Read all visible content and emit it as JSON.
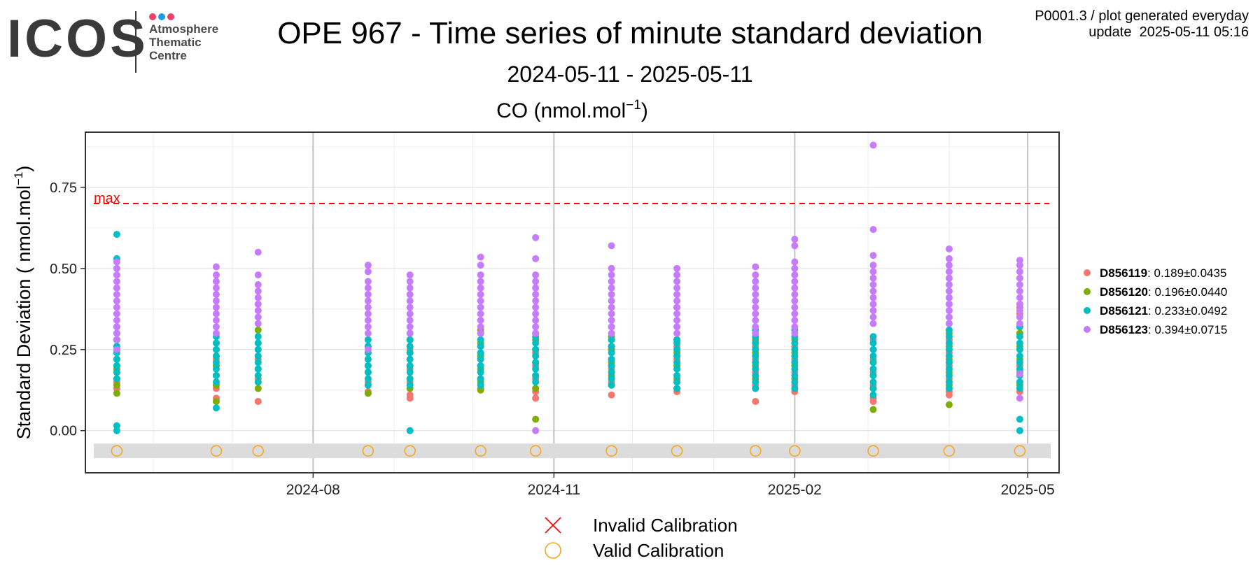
{
  "logo": {
    "word": "ICOS",
    "lines": [
      "Atmosphere",
      "Thematic",
      "Centre"
    ],
    "dot_colors": [
      "#e8426b",
      "#1c9be6",
      "#e8426b"
    ]
  },
  "header": {
    "title": "OPE 967 - Time series of minute standard deviation",
    "subtitle": "2024-05-11 - 2025-05-11",
    "info_line1": "P0001.3 / plot generated everyday",
    "info_line2": "update  2025-05-11 05:16"
  },
  "chart_data": {
    "type": "scatter",
    "title": "CO (nmol.mol",
    "title_sup": "−1",
    "title_close": ")",
    "ylabel": "Standard Deviation ( nmol.mol",
    "ylabel_sup": "−1",
    "ylabel_close": ")",
    "ylim": [
      -0.13,
      0.92
    ],
    "yticks": [
      0.0,
      0.25,
      0.5,
      0.75
    ],
    "ytick_labels": [
      "0.00",
      "0.25",
      "0.50",
      "0.75"
    ],
    "xlim": [
      "2024-05-06",
      "2025-05-13"
    ],
    "xticks": [
      "2024-08-01",
      "2024-11-01",
      "2025-02-01",
      "2025-05-01"
    ],
    "xtick_labels": [
      "2024-08",
      "2024-11",
      "2025-02",
      "2025-05"
    ],
    "grid": true,
    "legend_position": "right",
    "max_line": {
      "value": 0.7,
      "label": "max",
      "color": "#ff0000"
    },
    "calibration_band": {
      "y_range": [
        -0.085,
        -0.04
      ],
      "color": "#dcdcdc"
    },
    "calibration_dates": [
      "2024-05-18",
      "2024-06-25",
      "2024-07-11",
      "2024-08-22",
      "2024-09-07",
      "2024-10-04",
      "2024-10-25",
      "2024-11-23",
      "2024-12-18",
      "2025-01-17",
      "2025-02-01",
      "2025-03-03",
      "2025-04-01",
      "2025-04-28"
    ],
    "calibration_color": "#f5a623",
    "calibration_legend": [
      {
        "label": "Invalid Calibration",
        "marker": "cross",
        "color": "#ff0000"
      },
      {
        "label": "Valid Calibration",
        "marker": "circle",
        "color": "#f5a623"
      }
    ],
    "series": [
      {
        "name": "D856119",
        "stats": ": 0.189±0.0435",
        "color": "#f8766d",
        "points": [
          {
            "x": "2024-05-18",
            "y": [
              0.13,
              0.15,
              0.18,
              0.2,
              0.22,
              0.25,
              0.28
            ]
          },
          {
            "x": "2024-06-25",
            "y": [
              0.1,
              0.13,
              0.17,
              0.2,
              0.22,
              0.25
            ]
          },
          {
            "x": "2024-07-11",
            "y": [
              0.09,
              0.16,
              0.19,
              0.22,
              0.25
            ]
          },
          {
            "x": "2024-08-22",
            "y": [
              0.12,
              0.15,
              0.18,
              0.2,
              0.24
            ]
          },
          {
            "x": "2024-09-07",
            "y": [
              0.1,
              0.11,
              0.15,
              0.19,
              0.22,
              0.25
            ]
          },
          {
            "x": "2024-10-04",
            "y": [
              0.13,
              0.16,
              0.2,
              0.23,
              0.26,
              0.3
            ]
          },
          {
            "x": "2024-10-25",
            "y": [
              0.1,
              0.12,
              0.16,
              0.2,
              0.24,
              0.3
            ]
          },
          {
            "x": "2024-11-23",
            "y": [
              0.11,
              0.15,
              0.19,
              0.22,
              0.26,
              0.32
            ]
          },
          {
            "x": "2024-12-18",
            "y": [
              0.12,
              0.15,
              0.19,
              0.22,
              0.26,
              0.38
            ]
          },
          {
            "x": "2025-01-17",
            "y": [
              0.09,
              0.14,
              0.18,
              0.22,
              0.26,
              0.3
            ]
          },
          {
            "x": "2025-02-01",
            "y": [
              0.12,
              0.14,
              0.18,
              0.22,
              0.26
            ]
          },
          {
            "x": "2025-03-03",
            "y": [
              0.09,
              0.1,
              0.14,
              0.18,
              0.22,
              0.28
            ]
          },
          {
            "x": "2025-04-01",
            "y": [
              0.11,
              0.12,
              0.16,
              0.2,
              0.24,
              0.28
            ]
          },
          {
            "x": "2025-04-28",
            "y": [
              0.12,
              0.15,
              0.2,
              0.25,
              0.3,
              0.36,
              0.38
            ]
          }
        ]
      },
      {
        "name": "D856120",
        "stats": ": 0.196±0.0440",
        "color": "#7cae00",
        "points": [
          {
            "x": "2024-05-18",
            "y": [
              0.115,
              0.14,
              0.16,
              0.19,
              0.22,
              0.25,
              0.28
            ]
          },
          {
            "x": "2024-06-25",
            "y": [
              0.09,
              0.14,
              0.17,
              0.2,
              0.23,
              0.27
            ]
          },
          {
            "x": "2024-07-11",
            "y": [
              0.13,
              0.15,
              0.19,
              0.23,
              0.27,
              0.31
            ]
          },
          {
            "x": "2024-08-22",
            "y": [
              0.115,
              0.14,
              0.18,
              0.22,
              0.26
            ]
          },
          {
            "x": "2024-09-07",
            "y": [
              0.13,
              0.16,
              0.2,
              0.24,
              0.28
            ]
          },
          {
            "x": "2024-10-04",
            "y": [
              0.125,
              0.15,
              0.19,
              0.23,
              0.27,
              0.31
            ]
          },
          {
            "x": "2024-10-25",
            "y": [
              0.035,
              0.13,
              0.17,
              0.21,
              0.25,
              0.28
            ]
          },
          {
            "x": "2024-11-23",
            "y": [
              0.14,
              0.17,
              0.21,
              0.25,
              0.29
            ]
          },
          {
            "x": "2024-12-18",
            "y": [
              0.13,
              0.16,
              0.2,
              0.24,
              0.28
            ]
          },
          {
            "x": "2025-01-17",
            "y": [
              0.13,
              0.16,
              0.2,
              0.24,
              0.28
            ]
          },
          {
            "x": "2025-02-01",
            "y": [
              0.13,
              0.16,
              0.2,
              0.24,
              0.28
            ]
          },
          {
            "x": "2025-03-03",
            "y": [
              0.065,
              0.13,
              0.17,
              0.21,
              0.25
            ]
          },
          {
            "x": "2025-04-01",
            "y": [
              0.08,
              0.14,
              0.18,
              0.22,
              0.26,
              0.3
            ]
          },
          {
            "x": "2025-04-28",
            "y": [
              0.14,
              0.18,
              0.22,
              0.26,
              0.3,
              0.32
            ]
          }
        ]
      },
      {
        "name": "D856121",
        "stats": ": 0.233±0.0492",
        "color": "#00bfc4",
        "points": [
          {
            "x": "2024-05-18",
            "y": [
              0.0,
              0.015,
              0.16,
              0.18,
              0.2,
              0.22,
              0.24,
              0.26,
              0.28,
              0.3,
              0.32,
              0.53,
              0.605
            ]
          },
          {
            "x": "2024-06-25",
            "y": [
              0.07,
              0.15,
              0.17,
              0.19,
              0.21,
              0.23,
              0.25,
              0.27,
              0.29
            ]
          },
          {
            "x": "2024-07-11",
            "y": [
              0.15,
              0.17,
              0.19,
              0.21,
              0.23,
              0.25,
              0.27,
              0.29
            ]
          },
          {
            "x": "2024-08-22",
            "y": [
              0.14,
              0.16,
              0.18,
              0.2,
              0.22,
              0.24,
              0.26,
              0.28
            ]
          },
          {
            "x": "2024-09-07",
            "y": [
              0.0,
              0.14,
              0.16,
              0.18,
              0.2,
              0.22,
              0.24,
              0.26,
              0.28,
              0.3
            ]
          },
          {
            "x": "2024-10-04",
            "y": [
              0.14,
              0.16,
              0.18,
              0.2,
              0.22,
              0.24,
              0.26,
              0.28,
              0.3,
              0.3
            ]
          },
          {
            "x": "2024-10-25",
            "y": [
              0.15,
              0.17,
              0.19,
              0.21,
              0.23,
              0.25,
              0.27,
              0.29,
              0.3
            ]
          },
          {
            "x": "2024-11-23",
            "y": [
              0.14,
              0.16,
              0.18,
              0.2,
              0.22,
              0.24,
              0.26,
              0.28
            ]
          },
          {
            "x": "2024-12-18",
            "y": [
              0.13,
              0.15,
              0.17,
              0.19,
              0.21,
              0.23,
              0.25,
              0.27,
              0.28
            ]
          },
          {
            "x": "2025-01-17",
            "y": [
              0.13,
              0.15,
              0.17,
              0.19,
              0.21,
              0.23,
              0.25,
              0.27,
              0.29,
              0.31
            ]
          },
          {
            "x": "2025-02-01",
            "y": [
              0.13,
              0.15,
              0.17,
              0.19,
              0.21,
              0.23,
              0.25,
              0.27,
              0.29,
              0.31
            ]
          },
          {
            "x": "2025-03-03",
            "y": [
              0.11,
              0.13,
              0.15,
              0.17,
              0.19,
              0.21,
              0.23,
              0.25,
              0.27,
              0.29
            ]
          },
          {
            "x": "2025-04-01",
            "y": [
              0.13,
              0.15,
              0.17,
              0.19,
              0.21,
              0.23,
              0.25,
              0.27,
              0.29,
              0.31,
              0.33
            ]
          },
          {
            "x": "2025-04-28",
            "y": [
              0.0,
              0.035,
              0.13,
              0.15,
              0.17,
              0.19,
              0.21,
              0.23,
              0.25,
              0.27,
              0.29,
              0.32
            ]
          }
        ]
      },
      {
        "name": "D856123",
        "stats": ": 0.394±0.0715",
        "color": "#c77cff",
        "points": [
          {
            "x": "2024-05-18",
            "y": [
              0.25,
              0.28,
              0.3,
              0.32,
              0.34,
              0.36,
              0.38,
              0.4,
              0.42,
              0.44,
              0.46,
              0.48,
              0.5,
              0.52
            ]
          },
          {
            "x": "2024-06-25",
            "y": [
              0.3,
              0.32,
              0.34,
              0.36,
              0.38,
              0.4,
              0.42,
              0.44,
              0.46,
              0.48,
              0.505
            ]
          },
          {
            "x": "2024-07-11",
            "y": [
              0.33,
              0.35,
              0.37,
              0.39,
              0.41,
              0.43,
              0.45,
              0.48,
              0.55
            ]
          },
          {
            "x": "2024-08-22",
            "y": [
              0.25,
              0.3,
              0.32,
              0.34,
              0.36,
              0.38,
              0.4,
              0.42,
              0.44,
              0.46,
              0.49,
              0.51
            ]
          },
          {
            "x": "2024-09-07",
            "y": [
              0.3,
              0.32,
              0.34,
              0.36,
              0.38,
              0.4,
              0.42,
              0.44,
              0.46,
              0.48
            ]
          },
          {
            "x": "2024-10-04",
            "y": [
              0.3,
              0.32,
              0.34,
              0.36,
              0.38,
              0.4,
              0.42,
              0.44,
              0.46,
              0.48,
              0.51,
              0.535
            ]
          },
          {
            "x": "2024-10-25",
            "y": [
              0.0,
              0.3,
              0.32,
              0.34,
              0.36,
              0.38,
              0.4,
              0.42,
              0.44,
              0.46,
              0.48,
              0.53,
              0.595
            ]
          },
          {
            "x": "2024-11-23",
            "y": [
              0.3,
              0.32,
              0.34,
              0.36,
              0.38,
              0.4,
              0.42,
              0.44,
              0.46,
              0.48,
              0.5,
              0.57
            ]
          },
          {
            "x": "2024-12-18",
            "y": [
              0.3,
              0.32,
              0.34,
              0.36,
              0.38,
              0.4,
              0.42,
              0.44,
              0.46,
              0.48,
              0.5
            ]
          },
          {
            "x": "2025-01-17",
            "y": [
              0.3,
              0.32,
              0.34,
              0.36,
              0.38,
              0.4,
              0.42,
              0.44,
              0.46,
              0.48,
              0.505
            ]
          },
          {
            "x": "2025-02-01",
            "y": [
              0.3,
              0.32,
              0.34,
              0.36,
              0.38,
              0.4,
              0.42,
              0.44,
              0.46,
              0.48,
              0.5,
              0.52,
              0.57,
              0.59
            ]
          },
          {
            "x": "2025-03-03",
            "y": [
              0.33,
              0.35,
              0.37,
              0.39,
              0.41,
              0.43,
              0.45,
              0.47,
              0.49,
              0.51,
              0.54,
              0.62,
              0.88
            ]
          },
          {
            "x": "2025-04-01",
            "y": [
              0.33,
              0.35,
              0.37,
              0.39,
              0.41,
              0.43,
              0.45,
              0.47,
              0.49,
              0.51,
              0.53,
              0.56
            ]
          },
          {
            "x": "2025-04-28",
            "y": [
              0.1,
              0.175,
              0.33,
              0.35,
              0.37,
              0.39,
              0.41,
              0.43,
              0.45,
              0.47,
              0.49,
              0.51,
              0.525
            ]
          }
        ]
      }
    ]
  }
}
